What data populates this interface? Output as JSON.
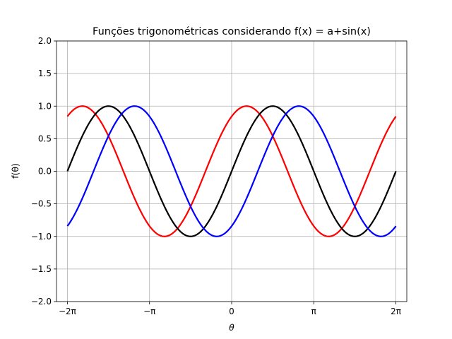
{
  "chart_data": {
    "type": "line",
    "title": "Funções trigonométricas considerando f(x) = a+sin(x)",
    "xlabel": "θ",
    "ylabel": "f(θ)",
    "xlim": [
      -6.7,
      6.7
    ],
    "ylim": [
      -2.0,
      2.0
    ],
    "grid": true,
    "x_ticks": [
      {
        "value": -6.283185307,
        "label": "−2π"
      },
      {
        "value": -3.141592654,
        "label": "−π"
      },
      {
        "value": 0,
        "label": "0"
      },
      {
        "value": 3.141592654,
        "label": "π"
      },
      {
        "value": 6.283185307,
        "label": "2π"
      }
    ],
    "y_ticks": [
      {
        "value": -2.0,
        "label": "−2.0"
      },
      {
        "value": -1.5,
        "label": "−1.5"
      },
      {
        "value": -1.0,
        "label": "−1.0"
      },
      {
        "value": -0.5,
        "label": "−0.5"
      },
      {
        "value": 0.0,
        "label": "0.0"
      },
      {
        "value": 0.5,
        "label": "0.5"
      },
      {
        "value": 1.0,
        "label": "1.0"
      },
      {
        "value": 1.5,
        "label": "1.5"
      },
      {
        "value": 2.0,
        "label": "2.0"
      }
    ],
    "x_range": [
      -6.283185307,
      6.283185307
    ],
    "series": [
      {
        "function": "sin(x+1)",
        "color": "#ff0000",
        "phase": 1
      },
      {
        "function": "sin(x)",
        "color": "#000000",
        "phase": 0
      },
      {
        "function": "sin(x-1)",
        "color": "#0000ff",
        "phase": -1
      }
    ]
  }
}
